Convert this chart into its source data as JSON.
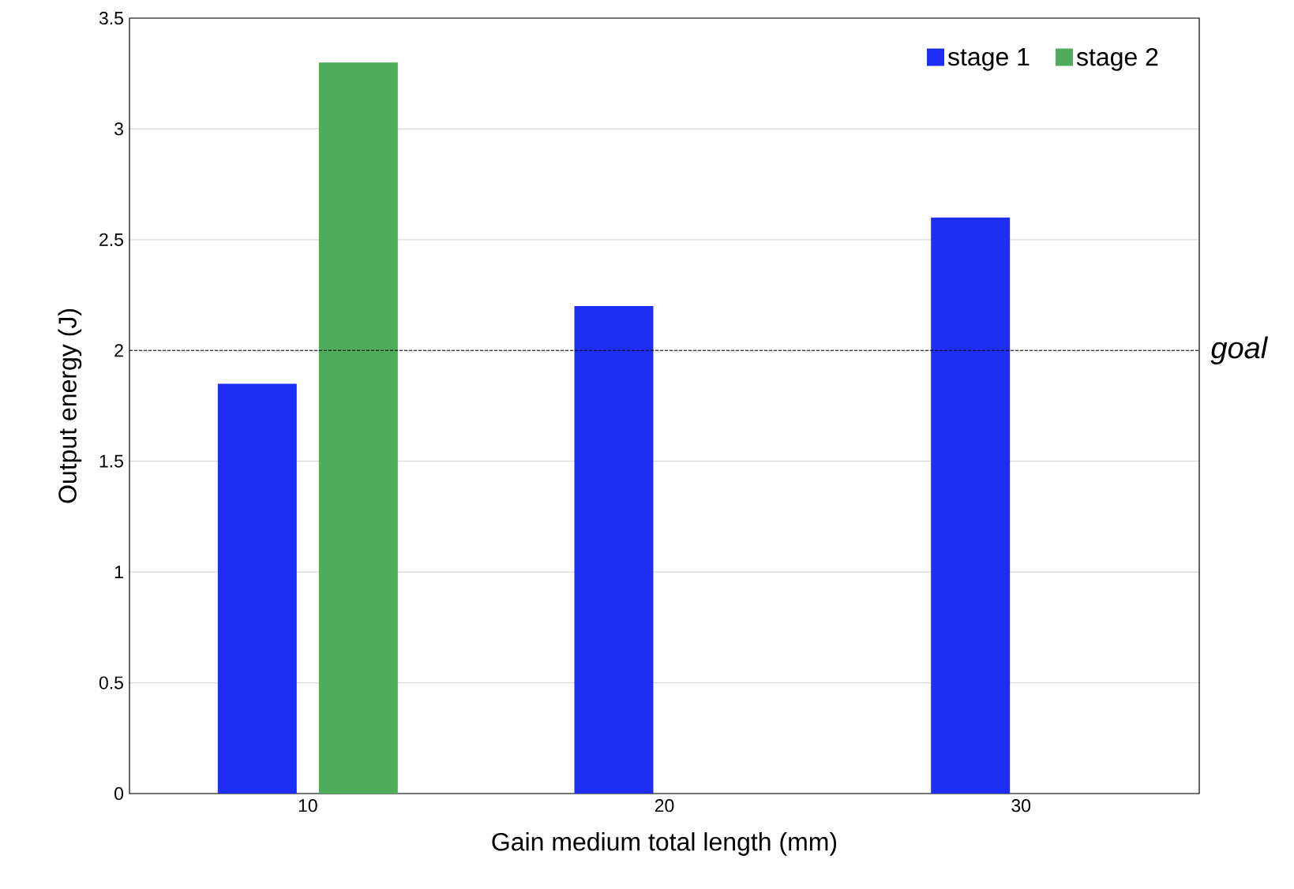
{
  "chart_data": {
    "type": "bar",
    "xlabel": "Gain medium total length (mm)",
    "ylabel": "Output energy (J)",
    "categories": [
      "10",
      "20",
      "30"
    ],
    "series": [
      {
        "name": "stage 1",
        "color": "#1f2ef5",
        "values": [
          1.85,
          2.2,
          2.6
        ]
      },
      {
        "name": "stage 2",
        "color": "#4fac5b",
        "values": [
          3.3,
          null,
          null
        ]
      }
    ],
    "ylim": [
      0,
      3.5
    ],
    "yticks": [
      0,
      0.5,
      1,
      1.5,
      2,
      2.5,
      3,
      3.5
    ],
    "grid": "y",
    "legend": "top right",
    "ref_lines": [
      {
        "axis": "y",
        "value": 2,
        "label": "*goal*",
        "line_style": "dashed"
      }
    ]
  }
}
